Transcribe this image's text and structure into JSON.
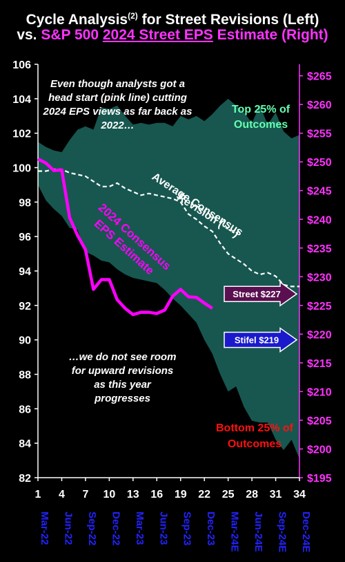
{
  "title": {
    "line1_a": "Cycle Analysis",
    "line1_sup": "(2)",
    "line1_b": " for Street Revisions (Left)",
    "line2_a": "vs. ",
    "line2_b": "S&P 500 ",
    "line2_c": "2024 Street EPS",
    "line2_d": " Estimate (Right)"
  },
  "annotations": {
    "top_left": "Even though analysts got a head start (pink line) cutting 2024 EPS views as far back as 2022…",
    "top_right": "Top 25% of Outcomes",
    "avg_line1": "Average Consensus",
    "avg_line2": "Revision (----)",
    "pink_label1": "2024 Consensus",
    "pink_label2": "EPS Estimate",
    "bottom_left": "…we do not see room for upward revisions as this year progresses",
    "bottom_right": "Bottom 25% of Outcomes",
    "street_arrow": "Street $227",
    "stifel_arrow": "Stifel $219"
  },
  "colors": {
    "band": "#17574f",
    "pink": "#ff00ff",
    "white": "#ffffff",
    "axis_left": "#ffffff",
    "axis_right": "#ff33ff",
    "dates": "#2222ff",
    "top_text": "#66ffb0",
    "bottom_text": "#ff1010",
    "street_fill": "#5a1050",
    "stifel_fill": "#1a1acc"
  },
  "chart_data": {
    "type": "line",
    "x_ticks": [
      1,
      4,
      7,
      10,
      13,
      16,
      19,
      22,
      25,
      28,
      31,
      34
    ],
    "x_range": [
      1,
      34
    ],
    "date_labels": [
      "Mar-22",
      "Jun-22",
      "Sep-22",
      "Dec-22",
      "Mar-23",
      "Jun-23",
      "Sep-23",
      "Dec-23",
      "Mar-24E",
      "Jun-24E",
      "Sep-24E",
      "Dec-24E"
    ],
    "ylim_left": [
      82,
      106
    ],
    "yticks_left": [
      82,
      84,
      86,
      88,
      90,
      92,
      94,
      96,
      98,
      100,
      102,
      104,
      106
    ],
    "ylim_right": [
      195,
      267
    ],
    "yticks_right": [
      "$195",
      "$200",
      "$205",
      "$210",
      "$215",
      "$220",
      "$225",
      "$230",
      "$235",
      "$240",
      "$245",
      "$250",
      "$255",
      "$260",
      "$265"
    ],
    "yticks_right_values": [
      195,
      200,
      205,
      210,
      215,
      220,
      225,
      230,
      235,
      240,
      245,
      250,
      255,
      260,
      265
    ],
    "band_upper": {
      "x": [
        1,
        2,
        3,
        4,
        5,
        6,
        7,
        8,
        9,
        10,
        11,
        12,
        13,
        14,
        15,
        16,
        17,
        18,
        19,
        20,
        21,
        22,
        23,
        24,
        25,
        26,
        27,
        28,
        29,
        30,
        31,
        32,
        33,
        34
      ],
      "y": [
        101.5,
        101.2,
        101.0,
        100.9,
        101.6,
        102.2,
        102.4,
        102.2,
        103.5,
        103.4,
        103.6,
        103.0,
        102.5,
        102.6,
        102.5,
        102.6,
        102.6,
        102.4,
        103.0,
        102.8,
        103.0,
        102.7,
        103.1,
        103.6,
        104.0,
        103.6,
        103.2,
        102.6,
        103.6,
        102.5,
        103.2,
        102.1,
        101.7,
        101.9
      ]
    },
    "band_lower": {
      "x": [
        1,
        2,
        3,
        4,
        5,
        6,
        7,
        8,
        9,
        10,
        11,
        12,
        13,
        14,
        15,
        16,
        17,
        18,
        19,
        20,
        21,
        22,
        23,
        24,
        25,
        26,
        27,
        28,
        29,
        30,
        31,
        32,
        33,
        34
      ],
      "y": [
        99.0,
        98.1,
        97.6,
        97.2,
        96.5,
        96.4,
        95.1,
        94.9,
        94.6,
        94.5,
        94.1,
        93.8,
        93.6,
        93.5,
        93.4,
        93.3,
        92.9,
        92.4,
        92.0,
        91.5,
        91.0,
        90.0,
        89.2,
        88.0,
        87.0,
        87.3,
        86.1,
        85.3,
        85.2,
        85.2,
        84.2,
        83.6,
        84.2,
        83.1
      ]
    },
    "series": [
      {
        "name": "Average Consensus Revision",
        "axis": "left",
        "style": "dashed",
        "x": [
          1,
          2,
          3,
          4,
          5,
          6,
          7,
          8,
          9,
          10,
          11,
          12,
          13,
          14,
          15,
          16,
          17,
          18,
          19,
          20,
          21,
          22,
          23,
          24,
          25,
          26,
          27,
          28,
          29,
          30,
          31,
          32,
          33,
          34
        ],
        "y": [
          99.8,
          99.8,
          99.9,
          99.9,
          99.7,
          99.6,
          99.5,
          99.2,
          98.9,
          98.9,
          99.1,
          98.8,
          98.6,
          98.4,
          98.5,
          98.4,
          98.3,
          98.2,
          98.0,
          97.3,
          97.0,
          96.6,
          96.3,
          95.6,
          95.0,
          94.7,
          94.4,
          94.0,
          93.8,
          93.9,
          93.7,
          93.2,
          93.1,
          93.1
        ]
      },
      {
        "name": "2024 Consensus EPS Estimate",
        "axis": "right",
        "style": "solid",
        "x": [
          1,
          2,
          3,
          4,
          5,
          6,
          7,
          8,
          9,
          10,
          11,
          12,
          13,
          14,
          15,
          16,
          17,
          18,
          19,
          20,
          21,
          22,
          23
        ],
        "y": [
          250.5,
          249.8,
          248.5,
          248.6,
          240.3,
          237.2,
          234.7,
          227.8,
          229.5,
          229.5,
          226.0,
          224.5,
          223.4,
          223.8,
          223.8,
          223.6,
          224.2,
          226.6,
          227.8,
          226.5,
          226.4,
          225.4,
          224.5
        ]
      }
    ],
    "markers": [
      {
        "label": "Street $227",
        "value": 227,
        "axis": "right"
      },
      {
        "label": "Stifel $219",
        "value": 219,
        "axis": "right"
      }
    ]
  }
}
